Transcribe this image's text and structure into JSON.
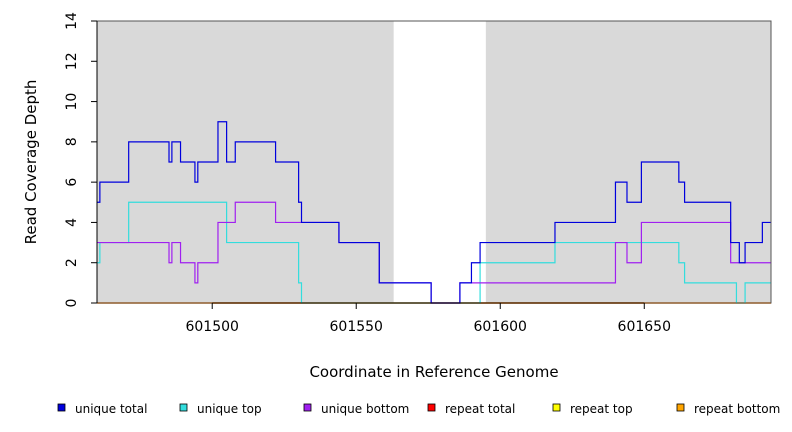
{
  "chart_data": {
    "type": "line",
    "title": "",
    "xlabel": "Coordinate in Reference Genome",
    "ylabel": "Read Coverage Depth",
    "xlim": [
      601460,
      601694
    ],
    "ylim": [
      0,
      14
    ],
    "x_ticks": [
      601500,
      601550,
      601600,
      601650
    ],
    "x_tick_labels": [
      "601500",
      "601550",
      "601600",
      "601650"
    ],
    "y_ticks": [
      0,
      2,
      4,
      6,
      8,
      10,
      12,
      14
    ],
    "y_tick_labels": [
      "0",
      "2",
      "4",
      "6",
      "8",
      "10",
      "12",
      "14"
    ],
    "shaded_regions": [
      {
        "x0": 601460,
        "x1": 601563,
        "color": "#d9d9d9"
      },
      {
        "x0": 601595,
        "x1": 601694,
        "color": "#d9d9d9"
      }
    ],
    "series": [
      {
        "name": "unique total",
        "color": "#0000dd",
        "steps": [
          [
            601460,
            5
          ],
          [
            601461,
            6
          ],
          [
            601471,
            8
          ],
          [
            601485,
            7
          ],
          [
            601486,
            8
          ],
          [
            601489,
            7
          ],
          [
            601494,
            6
          ],
          [
            601495,
            7
          ],
          [
            601502,
            9
          ],
          [
            601505,
            7
          ],
          [
            601508,
            8
          ],
          [
            601522,
            7
          ],
          [
            601530,
            5
          ],
          [
            601531,
            4
          ],
          [
            601544,
            3
          ],
          [
            601558,
            1
          ],
          [
            601576,
            0
          ],
          [
            601586,
            1
          ],
          [
            601590,
            2
          ],
          [
            601593,
            3
          ],
          [
            601619,
            4
          ],
          [
            601640,
            6
          ],
          [
            601644,
            5
          ],
          [
            601649,
            7
          ],
          [
            601662,
            6
          ],
          [
            601664,
            5
          ],
          [
            601680,
            3
          ],
          [
            601683,
            2
          ],
          [
            601685,
            3
          ],
          [
            601691,
            4
          ]
        ],
        "end": 601694
      },
      {
        "name": "unique top",
        "color": "#33dddd",
        "steps": [
          [
            601460,
            2
          ],
          [
            601461,
            3
          ],
          [
            601471,
            5
          ],
          [
            601505,
            3
          ],
          [
            601530,
            1
          ],
          [
            601531,
            0
          ],
          [
            601593,
            2
          ],
          [
            601619,
            3
          ],
          [
            601662,
            2
          ],
          [
            601664,
            1
          ],
          [
            601682,
            0
          ],
          [
            601685,
            1
          ]
        ],
        "end": 601694
      },
      {
        "name": "unique bottom",
        "color": "#a020f0",
        "steps": [
          [
            601460,
            3
          ],
          [
            601485,
            2
          ],
          [
            601486,
            3
          ],
          [
            601489,
            2
          ],
          [
            601494,
            1
          ],
          [
            601495,
            2
          ],
          [
            601502,
            4
          ],
          [
            601508,
            5
          ],
          [
            601522,
            4
          ],
          [
            601544,
            3
          ],
          [
            601558,
            1
          ],
          [
            601576,
            0
          ],
          [
            601586,
            1
          ],
          [
            601640,
            3
          ],
          [
            601644,
            2
          ],
          [
            601649,
            4
          ],
          [
            601680,
            2
          ]
        ],
        "end": 601694
      },
      {
        "name": "repeat total",
        "color": "#ff0000",
        "steps": [
          [
            601460,
            0
          ]
        ],
        "end": 601694
      },
      {
        "name": "repeat top",
        "color": "#ffff00",
        "steps": [
          [
            601460,
            0
          ]
        ],
        "end": 601694
      },
      {
        "name": "repeat bottom",
        "color": "#ffa500",
        "steps": [
          [
            601460,
            0
          ]
        ],
        "end": 601694
      }
    ],
    "legend": {
      "placement": "bottom",
      "entries": [
        {
          "label": "unique total",
          "color": "#0000dd"
        },
        {
          "label": "unique top",
          "color": "#33dddd"
        },
        {
          "label": "unique bottom",
          "color": "#a020f0"
        },
        {
          "label": "repeat total",
          "color": "#ff0000"
        },
        {
          "label": "repeat top",
          "color": "#ffff00"
        },
        {
          "label": "repeat bottom",
          "color": "#ffa500"
        }
      ]
    }
  }
}
